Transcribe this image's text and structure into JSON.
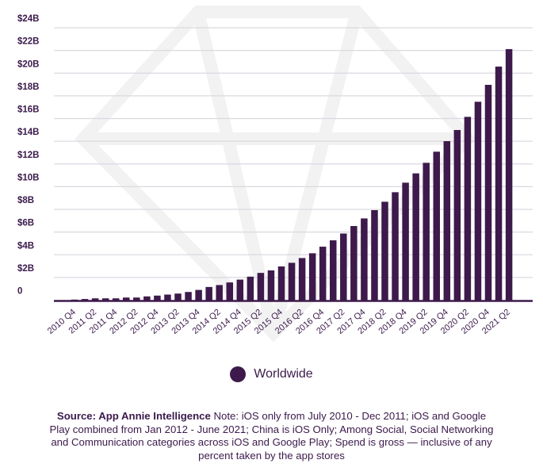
{
  "chart_data": {
    "type": "bar",
    "title": "",
    "xlabel": "",
    "ylabel": "",
    "ylim": [
      0,
      24
    ],
    "y_unit": "billion USD",
    "grid": true,
    "yticks": [
      0,
      2,
      4,
      6,
      8,
      10,
      12,
      14,
      16,
      18,
      20,
      22,
      24
    ],
    "ytick_labels": [
      "0",
      "$2B",
      "$4B",
      "$6B",
      "$8B",
      "$10B",
      "$12B",
      "$14B",
      "$16B",
      "$18B",
      "$20B",
      "$22B",
      "$24B"
    ],
    "categories": [
      "2010 Q4",
      "2011 Q1",
      "2011 Q2",
      "2011 Q3",
      "2011 Q4",
      "2012 Q1",
      "2012 Q2",
      "2012 Q3",
      "2012 Q4",
      "2013 Q1",
      "2013 Q2",
      "2013 Q3",
      "2013 Q4",
      "2014 Q1",
      "2014 Q2",
      "2014 Q3",
      "2014 Q4",
      "2015 Q1",
      "2015 Q2",
      "2015 Q3",
      "2015 Q4",
      "2016 Q1",
      "2016 Q2",
      "2016 Q3",
      "2016 Q4",
      "2017 Q1",
      "2017 Q2",
      "2017 Q3",
      "2017 Q4",
      "2018 Q1",
      "2018 Q2",
      "2018 Q3",
      "2018 Q4",
      "2019 Q1",
      "2019 Q2",
      "2019 Q3",
      "2019 Q4",
      "2020 Q1",
      "2020 Q2",
      "2020 Q3",
      "2020 Q4",
      "2021 Q1",
      "2021 Q2"
    ],
    "series": [
      {
        "name": "Worldwide",
        "color": "#3d1a4b",
        "values": [
          0.05,
          0.1,
          0.16,
          0.16,
          0.16,
          0.23,
          0.23,
          0.33,
          0.4,
          0.49,
          0.58,
          0.72,
          0.9,
          1.16,
          1.33,
          1.56,
          1.81,
          2.07,
          2.4,
          2.62,
          2.97,
          3.29,
          3.71,
          4.13,
          4.71,
          5.27,
          5.87,
          6.53,
          7.2,
          7.93,
          8.67,
          9.51,
          10.35,
          11.17,
          12.1,
          13.08,
          14.01,
          14.99,
          16.15,
          17.48,
          18.97,
          20.58,
          22.12
        ]
      }
    ],
    "legend": {
      "position": "bottom-center",
      "label": "Worldwide"
    }
  },
  "footnote": {
    "source_label": "Source: App Annie Intelligence",
    "text": " Note: iOS only from July 2010 - Dec 2011; iOS and Google Play combined from Jan 2012 - June 2021; China is iOS Only; Among Social, Social Networking and Communication categories across iOS and Google Play; Spend is gross — inclusive of any percent taken by the app stores"
  }
}
